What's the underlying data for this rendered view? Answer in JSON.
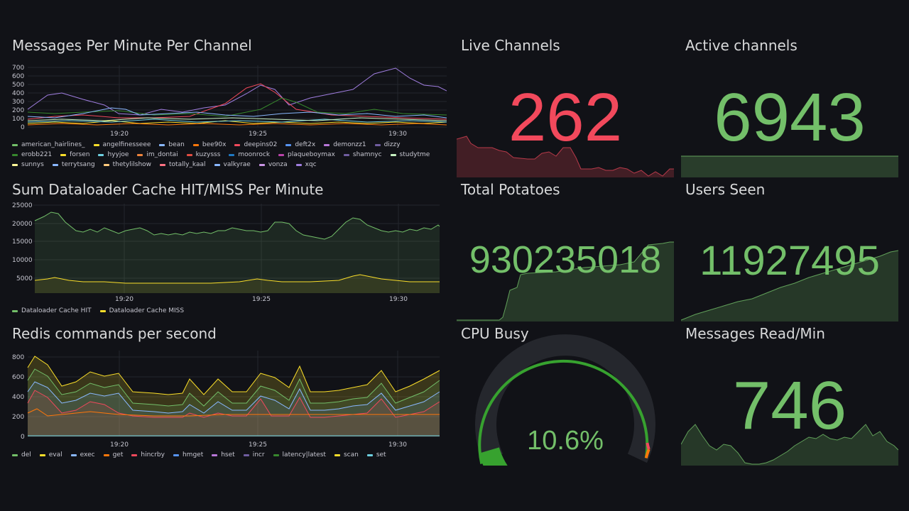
{
  "colors": {
    "green": "#73bf69",
    "red": "#f2495c",
    "grid": "#24262c",
    "axis": "#c7c7d1"
  },
  "panels": {
    "messages": {
      "title": "Messages Per Minute Per Channel",
      "yticks": [
        "700",
        "600",
        "500",
        "400",
        "300",
        "200",
        "100",
        "0"
      ],
      "xticks": [
        "19:20",
        "19:25",
        "19:30"
      ],
      "legend": [
        {
          "label": "american_hairlines_",
          "color": "#73bf69"
        },
        {
          "label": "angelfinesseee",
          "color": "#fade2a"
        },
        {
          "label": "bean",
          "color": "#8ab8ff"
        },
        {
          "label": "bee90x",
          "color": "#ff780a"
        },
        {
          "label": "deepins02",
          "color": "#f2495c"
        },
        {
          "label": "deft2x",
          "color": "#5794f2"
        },
        {
          "label": "demonzz1",
          "color": "#b877d9"
        },
        {
          "label": "dizzy",
          "color": "#705da0"
        },
        {
          "label": "erobb221",
          "color": "#37872d"
        },
        {
          "label": "forsen",
          "color": "#fade2a"
        },
        {
          "label": "hyyjoe",
          "color": "#6ed0e0"
        },
        {
          "label": "im_dontai",
          "color": "#ef843c"
        },
        {
          "label": "kuzysss",
          "color": "#e24d42"
        },
        {
          "label": "moonrock",
          "color": "#1f78c1"
        },
        {
          "label": "plaqueboymax",
          "color": "#ba43a9"
        },
        {
          "label": "shamnyc",
          "color": "#705da0"
        },
        {
          "label": "studytme",
          "color": "#c8f2c2"
        },
        {
          "label": "sunnys",
          "color": "#fff899"
        },
        {
          "label": "terrytsang",
          "color": "#8ab8ff"
        },
        {
          "label": "thetylilshow",
          "color": "#ffcb7d"
        },
        {
          "label": "totally_kaal",
          "color": "#ff7383"
        },
        {
          "label": "valkyrae",
          "color": "#8ab8ff"
        },
        {
          "label": "vonza",
          "color": "#ca95e5"
        },
        {
          "label": "xqc",
          "color": "#a07ee0"
        }
      ]
    },
    "dataloader": {
      "title": "Sum Dataloader Cache HIT/MISS Per Minute",
      "yticks": [
        "25000",
        "20000",
        "15000",
        "10000",
        "5000"
      ],
      "xticks": [
        "19:20",
        "19:25",
        "19:30"
      ],
      "legend": [
        {
          "label": "Dataloader Cache HIT",
          "color": "#73bf69"
        },
        {
          "label": "Dataloader Cache MISS",
          "color": "#fade2a"
        }
      ]
    },
    "redis": {
      "title": "Redis commands per second",
      "yticks": [
        "800",
        "600",
        "400",
        "200",
        "0"
      ],
      "xticks": [
        "19:20",
        "19:25",
        "19:30"
      ],
      "legend": [
        {
          "label": "del",
          "color": "#73bf69"
        },
        {
          "label": "eval",
          "color": "#fade2a"
        },
        {
          "label": "exec",
          "color": "#8ab8ff"
        },
        {
          "label": "get",
          "color": "#ff780a"
        },
        {
          "label": "hincrby",
          "color": "#f2495c"
        },
        {
          "label": "hmget",
          "color": "#5794f2"
        },
        {
          "label": "hset",
          "color": "#b877d9"
        },
        {
          "label": "incr",
          "color": "#705da0"
        },
        {
          "label": "latency|latest",
          "color": "#37872d"
        },
        {
          "label": "scan",
          "color": "#fade2a"
        },
        {
          "label": "set",
          "color": "#6ed0e0"
        }
      ]
    },
    "live_channels": {
      "title": "Live Channels",
      "value": "262"
    },
    "active_channels": {
      "title": "Active channels",
      "value": "6943"
    },
    "total_potatoes": {
      "title": "Total Potatoes",
      "value": "930235018"
    },
    "users_seen": {
      "title": "Users Seen",
      "value": "11927495"
    },
    "cpu_busy": {
      "title": "CPU Busy",
      "value": "10.6%",
      "percent": 10.6
    },
    "messages_read": {
      "title": "Messages Read/Min",
      "value": "746"
    }
  }
}
